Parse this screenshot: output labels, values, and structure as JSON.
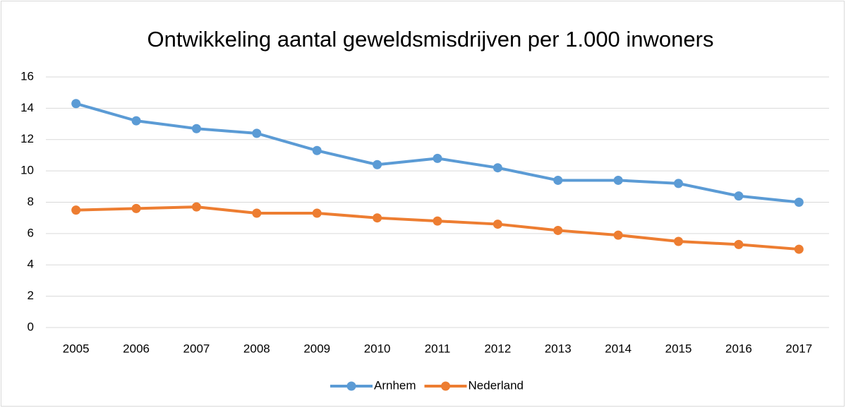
{
  "chart_data": {
    "type": "line",
    "title": "Ontwikkeling aantal geweldsmisdrijven per 1.000 inwoners",
    "categories": [
      "2005",
      "2006",
      "2007",
      "2008",
      "2009",
      "2010",
      "2011",
      "2012",
      "2013",
      "2014",
      "2015",
      "2016",
      "2017"
    ],
    "series": [
      {
        "name": "Arnhem",
        "color": "#5b9bd5",
        "values": [
          14.3,
          13.2,
          12.7,
          12.4,
          11.3,
          10.4,
          10.8,
          10.2,
          9.4,
          9.4,
          9.2,
          8.4,
          8.0
        ]
      },
      {
        "name": "Nederland",
        "color": "#ed7d31",
        "values": [
          7.5,
          7.6,
          7.7,
          7.3,
          7.3,
          7.0,
          6.8,
          6.6,
          6.2,
          5.9,
          5.5,
          5.3,
          5.0
        ]
      }
    ],
    "ylim": [
      0,
      16
    ],
    "yticks": [
      0,
      2,
      4,
      6,
      8,
      10,
      12,
      14,
      16
    ],
    "grid": true,
    "legend": "bottom"
  }
}
